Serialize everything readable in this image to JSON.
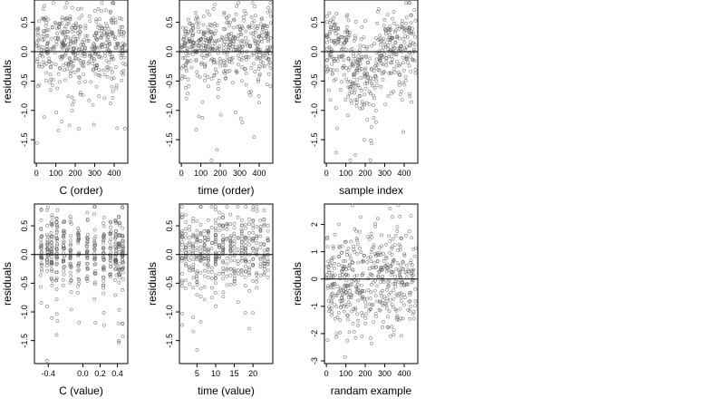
{
  "chart_data": [
    {
      "type": "scatter",
      "xlabel": "C (order)",
      "ylabel": "residuals",
      "xlim": [
        -10,
        470
      ],
      "ylim": [
        -1.9,
        0.88
      ],
      "xticks": [
        0,
        100,
        200,
        300,
        400
      ],
      "xtick_labels": [
        "0",
        "100",
        "200",
        "300",
        "400"
      ],
      "yticks": [
        -1.5,
        -1.0,
        -0.5,
        0.0,
        0.5
      ],
      "ytick_labels": [
        "-1.5",
        "-1.0",
        "-0.5",
        "0.0",
        "0.5"
      ],
      "reference_line": 0,
      "grid": false,
      "points": {
        "n": 460,
        "x_range": [
          1,
          460
        ],
        "note": "residuals ordered by C",
        "y_mean": 0.05,
        "y_sd": 0.35
      }
    },
    {
      "type": "scatter",
      "xlabel": "time (order)",
      "ylabel": "residuals",
      "xlim": [
        -10,
        470
      ],
      "ylim": [
        -1.9,
        0.88
      ],
      "xticks": [
        0,
        100,
        200,
        300,
        400
      ],
      "xtick_labels": [
        "0",
        "100",
        "200",
        "300",
        "400"
      ],
      "yticks": [
        -1.5,
        -1.0,
        -0.5,
        0.0,
        0.5
      ],
      "ytick_labels": [
        "-1.5",
        "-1.0",
        "-0.5",
        "0.0",
        "0.5"
      ],
      "reference_line": 0,
      "grid": false,
      "points": {
        "n": 460,
        "x_range": [
          1,
          460
        ],
        "y_mean": 0.05,
        "y_sd": 0.35
      }
    },
    {
      "type": "scatter",
      "xlabel": "sample index",
      "ylabel": "residuals",
      "xlim": [
        -10,
        470
      ],
      "ylim": [
        -1.9,
        0.88
      ],
      "xticks": [
        0,
        100,
        200,
        300,
        400
      ],
      "xtick_labels": [
        "0",
        "100",
        "200",
        "300",
        "400"
      ],
      "yticks": [
        -1.5,
        -1.0,
        -0.5,
        0.0,
        0.5
      ],
      "ytick_labels": [
        "-1.5",
        "-1.0",
        "-0.5",
        "0.0",
        "0.5"
      ],
      "reference_line": 0,
      "grid": false,
      "points": {
        "n": 460,
        "x_range": [
          1,
          460
        ],
        "y_mean": 0.05,
        "y_sd": 0.35,
        "trend": "dip around index 150-250"
      }
    },
    {
      "type": "scatter",
      "xlabel": "C (value)",
      "ylabel": "residuals",
      "xlim": [
        -0.56,
        0.52
      ],
      "ylim": [
        -1.9,
        0.88
      ],
      "xticks": [
        -0.4,
        0.0,
        0.2,
        0.4
      ],
      "xtick_labels": [
        "-0.4",
        "0.0",
        "0.2",
        "0.4"
      ],
      "yticks": [
        -1.5,
        -1.0,
        -0.5,
        0.0,
        0.5
      ],
      "ytick_labels": [
        "-1.5",
        "-1.0",
        "-0.5",
        "0.0",
        "0.5"
      ],
      "reference_line": 0,
      "grid": false,
      "points": {
        "n": 460,
        "x_range": [
          -0.52,
          0.48
        ],
        "note": "points cluster in vertical stripes",
        "y_mean": 0.05,
        "y_sd": 0.35
      }
    },
    {
      "type": "scatter",
      "xlabel": "time (value)",
      "ylabel": "residuals",
      "xlim": [
        0.3,
        25.3
      ],
      "ylim": [
        -1.9,
        0.88
      ],
      "xticks": [
        5,
        10,
        15,
        20
      ],
      "xtick_labels": [
        "5",
        "10",
        "15",
        "20"
      ],
      "yticks": [
        -1.5,
        -1.0,
        -0.5,
        0.0,
        0.5
      ],
      "ytick_labels": [
        "-1.5",
        "-1.0",
        "-0.5",
        "0.0",
        "0.5"
      ],
      "reference_line": 0,
      "grid": false,
      "points": {
        "n": 460,
        "x_range": [
          1,
          24
        ],
        "note": "points cluster at integer hours",
        "y_mean": 0.05,
        "y_sd": 0.35
      }
    },
    {
      "type": "scatter",
      "xlabel": "randam example",
      "ylabel": "residuals",
      "xlim": [
        -10,
        470
      ],
      "ylim": [
        -3.1,
        2.75
      ],
      "xticks": [
        0,
        100,
        200,
        300,
        400
      ],
      "xtick_labels": [
        "0",
        "100",
        "200",
        "300",
        "400"
      ],
      "yticks": [
        -3,
        -2,
        -1,
        0,
        1,
        2
      ],
      "ytick_labels": [
        "-3",
        "-2",
        "-1",
        "0",
        "1",
        "2"
      ],
      "reference_line": 0,
      "grid": false,
      "points": {
        "n": 460,
        "x_range": [
          1,
          460
        ],
        "y_mean": 0.0,
        "y_sd": 1.0
      }
    }
  ]
}
